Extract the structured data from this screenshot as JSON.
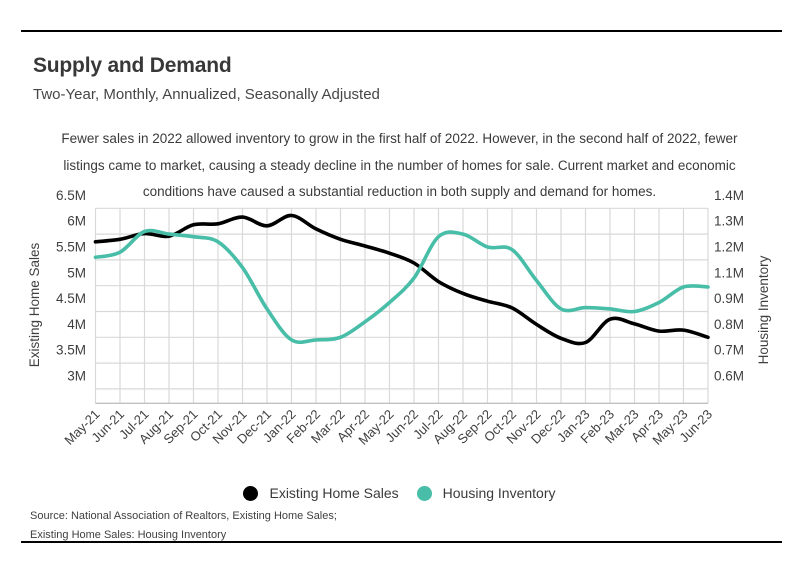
{
  "page": {
    "title": "Supply and Demand",
    "subtitle": "Two-Year, Monthly, Annualized, Seasonally Adjusted",
    "description_lines": [
      "Fewer sales in 2022 allowed inventory to grow in the first half of 2022. However, in the second half of 2022, fewer",
      "listings came to market, causing a steady decline in the number of homes for sale. Current market and economic",
      "conditions have caused a substantial reduction in both supply and demand for homes."
    ],
    "source_line1": "Source:  National Association of Realtors, Existing Home Sales;",
    "source_line2": "Existing Home Sales: Housing Inventory"
  },
  "legend": [
    {
      "label": "Existing Home Sales",
      "color": "#000000"
    },
    {
      "label": "Housing Inventory",
      "color": "#48BDA7"
    }
  ],
  "colors": {
    "teal_accent": "#48BDA7",
    "line_black": "#000000",
    "gridline": "#D9D9D9",
    "axis_line": "#C0C0C0",
    "text": "#3F3F3F",
    "rule": "#000000"
  },
  "chart_data": {
    "type": "line",
    "title": "Supply and Demand",
    "subtitle": "Two-Year, Monthly, Annualized, Seasonally Adjusted",
    "grid": true,
    "legend_position": "bottom",
    "x": [
      "May-21",
      "Jun-21",
      "Jul-21",
      "Aug-21",
      "Sep-21",
      "Oct-21",
      "Nov-21",
      "Dec-21",
      "Jan-22",
      "Feb-22",
      "Mar-22",
      "Apr-22",
      "May-22",
      "Jun-22",
      "Jul-22",
      "Aug-22",
      "Sep-22",
      "Oct-22",
      "Nov-22",
      "Dec-22",
      "Jan-23",
      "Feb-23",
      "Mar-23",
      "Apr-23",
      "May-23",
      "Jun-23"
    ],
    "left_axis": {
      "label": "Existing Home Sales",
      "tick_labels": [
        "6.5M",
        "6M",
        "5.5M",
        "5M",
        "4.5M",
        "4M",
        "3.5M",
        "3M"
      ],
      "tick_values": [
        6.5,
        6.0,
        5.5,
        5.0,
        4.5,
        4.0,
        3.5,
        3.0
      ]
    },
    "right_axis": {
      "label": "Housing Inventory",
      "tick_labels": [
        "1.4M",
        "1.3M",
        "1.2M",
        "1.1M",
        "0.9M",
        "0.8M",
        "0.7M",
        "0.6M"
      ],
      "tick_values": [
        1.4,
        1.3,
        1.2,
        1.1,
        0.9,
        0.8,
        0.7,
        0.6
      ]
    },
    "series": [
      {
        "name": "Existing Home Sales",
        "axis": "left",
        "color": "#000000",
        "values": [
          5.85,
          5.9,
          6.01,
          5.96,
          6.18,
          6.2,
          6.33,
          6.16,
          6.36,
          6.1,
          5.9,
          5.77,
          5.63,
          5.44,
          5.08,
          4.85,
          4.7,
          4.57,
          4.25,
          3.98,
          3.9,
          4.35,
          4.26,
          4.12,
          4.14,
          4.0
        ]
      },
      {
        "name": "Housing Inventory",
        "axis": "right",
        "color": "#48BDA7",
        "values": [
          1.21,
          1.23,
          1.31,
          1.3,
          1.29,
          1.27,
          1.17,
          0.92,
          0.79,
          0.79,
          0.8,
          0.86,
          0.97,
          1.13,
          1.29,
          1.3,
          1.25,
          1.24,
          1.12,
          0.92,
          0.93,
          0.92,
          0.9,
          0.97,
          1.09,
          1.09
        ]
      }
    ]
  }
}
